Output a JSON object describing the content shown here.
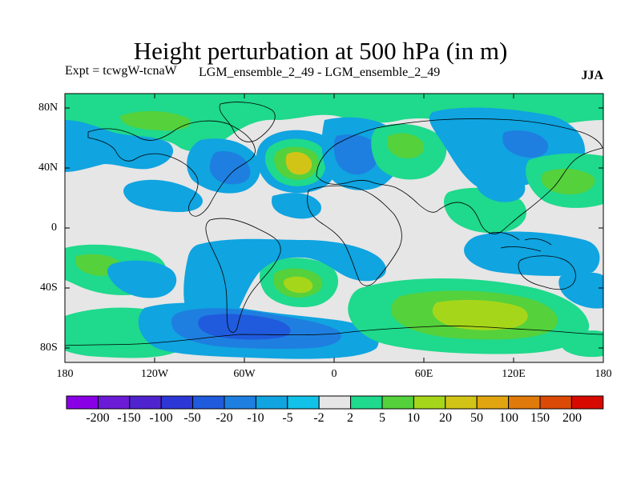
{
  "title": "Height perturbation at 500 hPa (in m)",
  "subtitle_left": "Expt = tcwgW-tcnaW",
  "subtitle_middle": "LGM_ensemble_2_49 - LGM_ensemble_2_49",
  "subtitle_right": "JJA",
  "lat_labels": [
    "80N",
    "40N",
    "0",
    "40S",
    "80S"
  ],
  "lon_labels": [
    "180",
    "120W",
    "60W",
    "0",
    "60E",
    "120E",
    "180"
  ],
  "colorbar": {
    "colors": [
      "#8a00e6",
      "#6b1ad6",
      "#4f24cf",
      "#2d37d6",
      "#1f5bdc",
      "#1e7fe0",
      "#10a4e0",
      "#12c2e8",
      "#e6e6e6",
      "#1fd98c",
      "#55d13c",
      "#a6d61a",
      "#d2c417",
      "#e0a510",
      "#e07a0a",
      "#db4a06",
      "#d80a00"
    ],
    "labels": [
      "-200",
      "-150",
      "-100",
      "-50",
      "-20",
      "-10",
      "-5",
      "-2",
      "2",
      "5",
      "10",
      "20",
      "50",
      "100",
      "150",
      "200"
    ]
  },
  "map_colors": {
    "background": "#e6e6e6",
    "blue_light": "#10a4e0",
    "blue_mid": "#1e7fe0",
    "blue_dark": "#1f5bdc",
    "green": "#1fd98c",
    "green_light": "#55d13c",
    "yellow_green": "#a6d61a",
    "yellow": "#d2c417",
    "coast": "#000000"
  }
}
